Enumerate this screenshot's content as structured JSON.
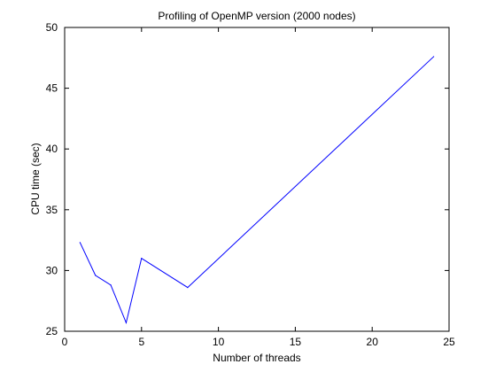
{
  "chart_data": {
    "type": "line",
    "title": "Profiling of OpenMP version (2000 nodes)",
    "xlabel": "Number of threads",
    "ylabel": "CPU time (sec)",
    "xlim": [
      0,
      25
    ],
    "ylim": [
      25,
      50
    ],
    "xticks": [
      0,
      5,
      10,
      15,
      20,
      25
    ],
    "yticks": [
      25,
      30,
      35,
      40,
      45,
      50
    ],
    "grid": false,
    "line_color": "#0000ff",
    "series": [
      {
        "x": [
          1,
          2,
          3,
          4,
          5,
          8,
          24
        ],
        "y": [
          32.3,
          29.6,
          28.8,
          25.7,
          31.0,
          28.6,
          47.6
        ]
      }
    ]
  }
}
